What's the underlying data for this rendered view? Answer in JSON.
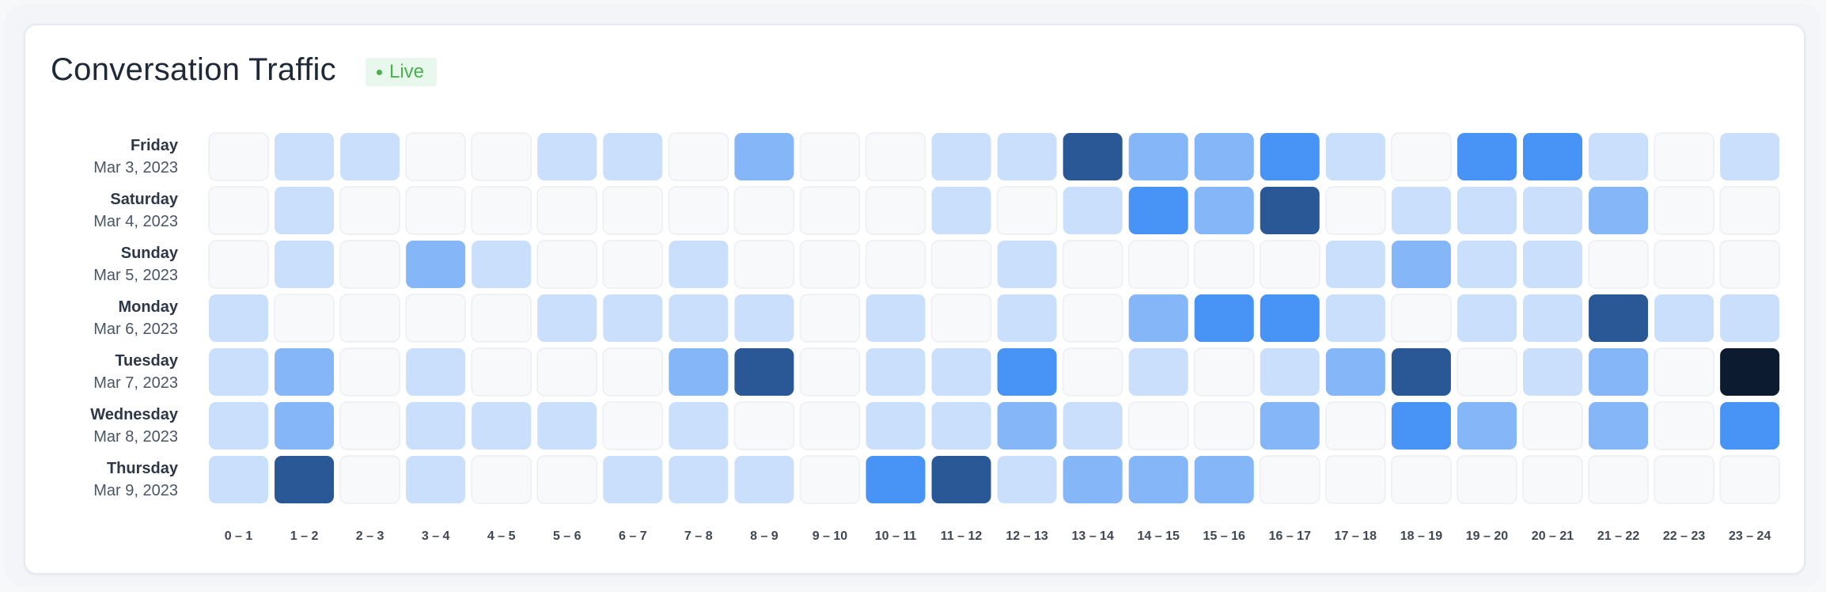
{
  "header": {
    "title": "Conversation Traffic",
    "badge_label": "Live",
    "badge_color": "#4caf50"
  },
  "chart_data": {
    "type": "heatmap",
    "title": "Conversation Traffic",
    "xlabel": "",
    "ylabel": "",
    "x_categories": [
      "0 – 1",
      "1 – 2",
      "2 – 3",
      "3 – 4",
      "4 – 5",
      "5 – 6",
      "6 – 7",
      "7 – 8",
      "8 – 9",
      "9 – 10",
      "10 – 11",
      "11 – 12",
      "12 – 13",
      "13 – 14",
      "14 – 15",
      "15 – 16",
      "16 – 17",
      "17 – 18",
      "18 – 19",
      "19 – 20",
      "20 – 21",
      "21 – 22",
      "22 – 23",
      "23 – 24"
    ],
    "rows": [
      {
        "day": "Friday",
        "date": "Mar 3, 2023",
        "values": [
          0,
          1,
          1,
          0,
          0,
          1,
          1,
          0,
          2,
          0,
          0,
          1,
          1,
          4,
          2,
          2,
          3,
          1,
          0,
          3,
          3,
          1,
          0,
          1
        ]
      },
      {
        "day": "Saturday",
        "date": "Mar 4, 2023",
        "values": [
          0,
          1,
          0,
          0,
          0,
          0,
          0,
          0,
          0,
          0,
          0,
          1,
          0,
          1,
          3,
          2,
          4,
          0,
          1,
          1,
          1,
          2,
          0,
          0
        ]
      },
      {
        "day": "Sunday",
        "date": "Mar 5, 2023",
        "values": [
          0,
          1,
          0,
          2,
          1,
          0,
          0,
          1,
          0,
          0,
          0,
          0,
          1,
          0,
          0,
          0,
          0,
          1,
          2,
          1,
          1,
          0,
          0,
          0
        ]
      },
      {
        "day": "Monday",
        "date": "Mar 6, 2023",
        "values": [
          1,
          0,
          0,
          0,
          0,
          1,
          1,
          1,
          1,
          0,
          1,
          0,
          1,
          0,
          2,
          3,
          3,
          1,
          0,
          1,
          1,
          4,
          1,
          1
        ]
      },
      {
        "day": "Tuesday",
        "date": "Mar 7, 2023",
        "values": [
          1,
          2,
          0,
          1,
          0,
          0,
          0,
          2,
          4,
          0,
          1,
          1,
          3,
          0,
          1,
          0,
          1,
          2,
          4,
          0,
          1,
          2,
          0,
          5
        ]
      },
      {
        "day": "Wednesday",
        "date": "Mar 8, 2023",
        "values": [
          1,
          2,
          0,
          1,
          1,
          1,
          0,
          1,
          0,
          0,
          1,
          1,
          2,
          1,
          0,
          0,
          2,
          0,
          3,
          2,
          0,
          2,
          0,
          3
        ]
      },
      {
        "day": "Thursday",
        "date": "Mar 9, 2023",
        "values": [
          1,
          4,
          0,
          1,
          0,
          0,
          1,
          1,
          1,
          0,
          3,
          4,
          1,
          2,
          2,
          2,
          0,
          0,
          0,
          0,
          0,
          0,
          0,
          0
        ]
      }
    ],
    "color_scale": [
      "#f8f9fb",
      "#c9dffb",
      "#84b6f8",
      "#4893f6",
      "#2a5795",
      "#0d1b30"
    ],
    "zero_border_color": "#eceef2",
    "grid": false,
    "legend": "none"
  }
}
